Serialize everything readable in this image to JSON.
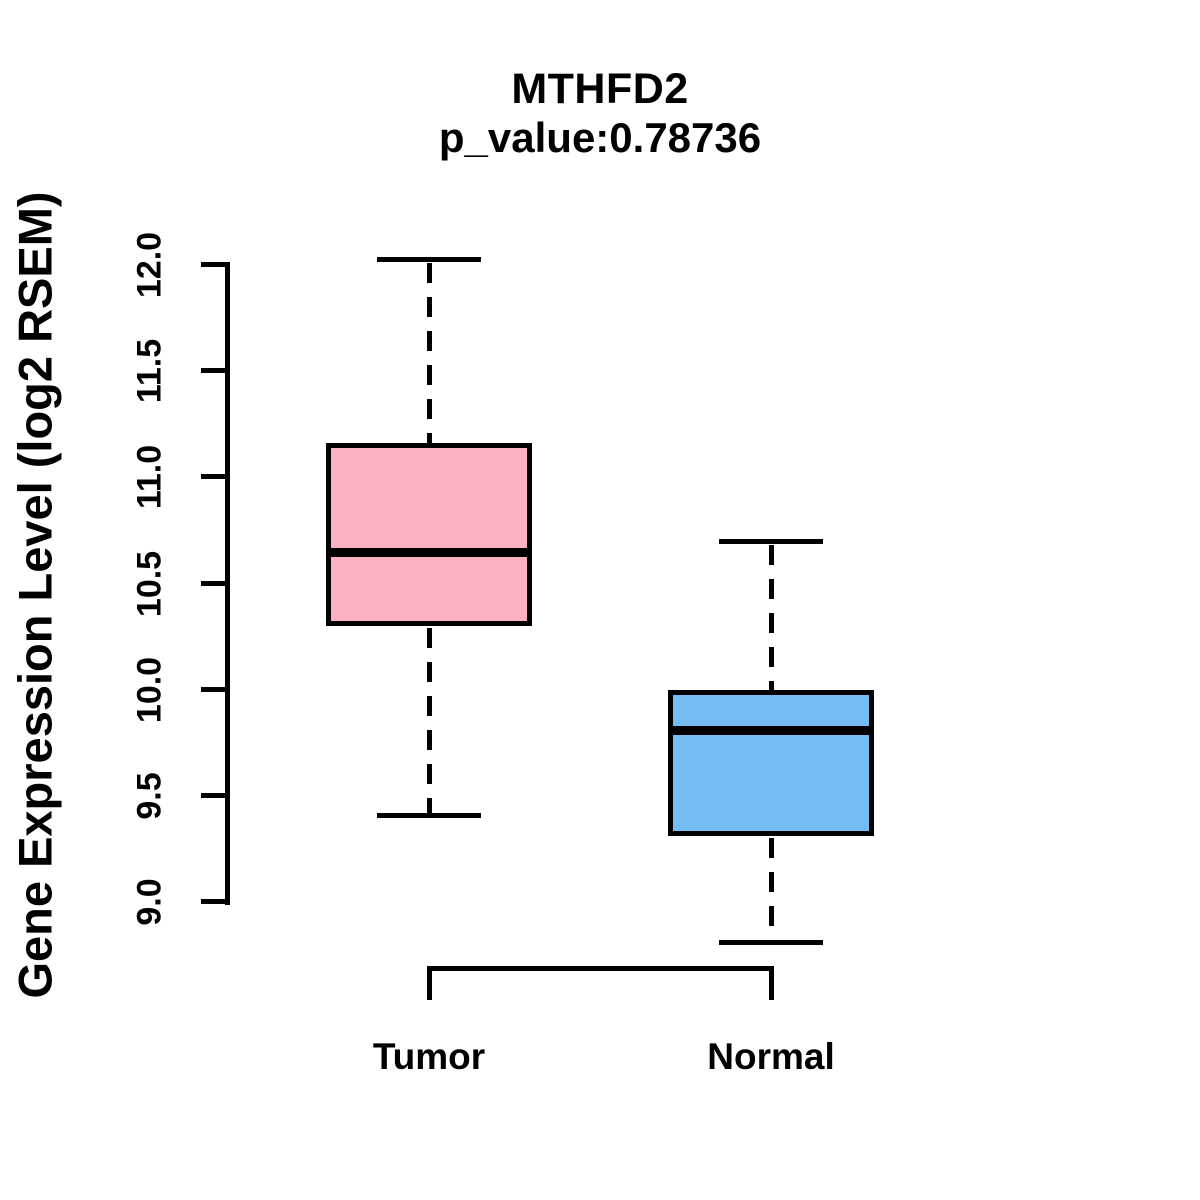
{
  "figure": {
    "background": "#ffffff",
    "foreground": "#000000"
  },
  "chart_data": {
    "type": "boxplot",
    "title": "MTHFD2",
    "subtitle": "p_value:0.78736",
    "ylabel": "Gene Expression Level (log2 RSEM)",
    "xlabel": "",
    "categories": [
      "Tumor",
      "Normal"
    ],
    "ytick_labels": [
      "9.0",
      "9.5",
      "10.0",
      "10.5",
      "11.0",
      "11.5",
      "12.0"
    ],
    "ylim": [
      9.0,
      12.0
    ],
    "grid": false,
    "legend": false,
    "series": [
      {
        "name": "Tumor",
        "color": "#FCB1C3",
        "whisker_low": 9.41,
        "q1": 10.3,
        "median": 10.65,
        "q3": 11.16,
        "whisker_high": 12.03
      },
      {
        "name": "Normal",
        "color": "#74BDF4",
        "whisker_low": 8.81,
        "q1": 9.31,
        "median": 9.81,
        "q3": 10.0,
        "whisker_high": 10.7
      }
    ]
  }
}
